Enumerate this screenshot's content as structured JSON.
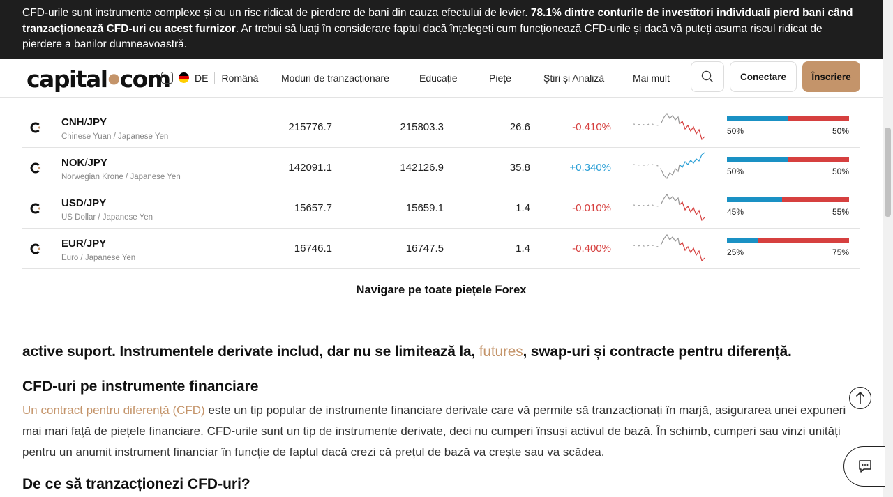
{
  "risk_banner": {
    "text_before": "CFD-urile sunt instrumente complexe și cu un risc ridicat de pierdere de bani din cauza efectului de levier. ",
    "text_bold": "78.1% dintre conturile de investitori individuali pierd bani când tranzacționează CFD-uri cu acest furnizor",
    "text_after": ". Ar trebui să luați în considerare faptul dacă înțelegeți cum funcționează CFD-urile și dacă vă puteți asuma riscul ridicat de pierdere a banilor dumneavoastră."
  },
  "header": {
    "logo_left": "capital",
    "logo_dot": "●",
    "logo_right": "com",
    "country": "DE",
    "language": "Română",
    "nav": [
      "Moduri de tranzacționare",
      "Educație",
      "Piețe",
      "Știri și Analiză",
      "Mai mult"
    ],
    "login": "Conectare",
    "signup": "Înscriere"
  },
  "rows": [
    {
      "base": "CNH",
      "quote": "JPY",
      "name": "Chinese Yuan / Japanese Yen",
      "sell": "215776.7",
      "buy": "215803.3",
      "spread": "26.6",
      "change": "-0.410%",
      "direction": "down",
      "buyers_pct": 50,
      "buyers_label": "50%",
      "sellers_label": "50%"
    },
    {
      "base": "NOK",
      "quote": "JPY",
      "name": "Norwegian Krone / Japanese Yen",
      "sell": "142091.1",
      "buy": "142126.9",
      "spread": "35.8",
      "change": "+0.340%",
      "direction": "up",
      "buyers_pct": 50,
      "buyers_label": "50%",
      "sellers_label": "50%"
    },
    {
      "base": "USD",
      "quote": "JPY",
      "name": "US Dollar / Japanese Yen",
      "sell": "15657.7",
      "buy": "15659.1",
      "spread": "1.4",
      "change": "-0.010%",
      "direction": "down",
      "buyers_pct": 45,
      "buyers_label": "45%",
      "sellers_label": "55%"
    },
    {
      "base": "EUR",
      "quote": "JPY",
      "name": "Euro / Japanese Yen",
      "sell": "16746.1",
      "buy": "16747.5",
      "spread": "1.4",
      "change": "-0.400%",
      "direction": "down",
      "buyers_pct": 25,
      "buyers_label": "25%",
      "sellers_label": "75%"
    }
  ],
  "navigate_all": "Navigare pe toate piețele Forex",
  "content": {
    "intro_before": "active suport. Instrumentele derivate includ, dar nu se limitează la, ",
    "intro_link": "futures",
    "intro_after": ", swap-uri și contracte pentru diferență.",
    "h2_cfd": "CFD-uri pe instrumente financiare",
    "para_link": "Un contract pentru diferență (CFD)",
    "para_text": " este un tip popular de instrumente financiare derivate care vă permite să tranzacționați în marjă, asigurarea unei expuneri mai mari față de piețele financiare. CFD-urile sunt un tip de instrumente derivate, deci nu cumperi însuși activul de bază. În schimb, cumperi sau vinzi unități pentru un anumit instrument financiar în funcție de faptul dacă crezi că prețul de bază va crește sau va scădea.",
    "h2_why": "De ce să tranzacționezi CFD-uri?"
  },
  "colors": {
    "accent": "#c4946a",
    "up": "#2a9fd6",
    "down": "#d6403f",
    "buy_bar": "#1a91c4",
    "sell_bar": "#d6403f"
  }
}
